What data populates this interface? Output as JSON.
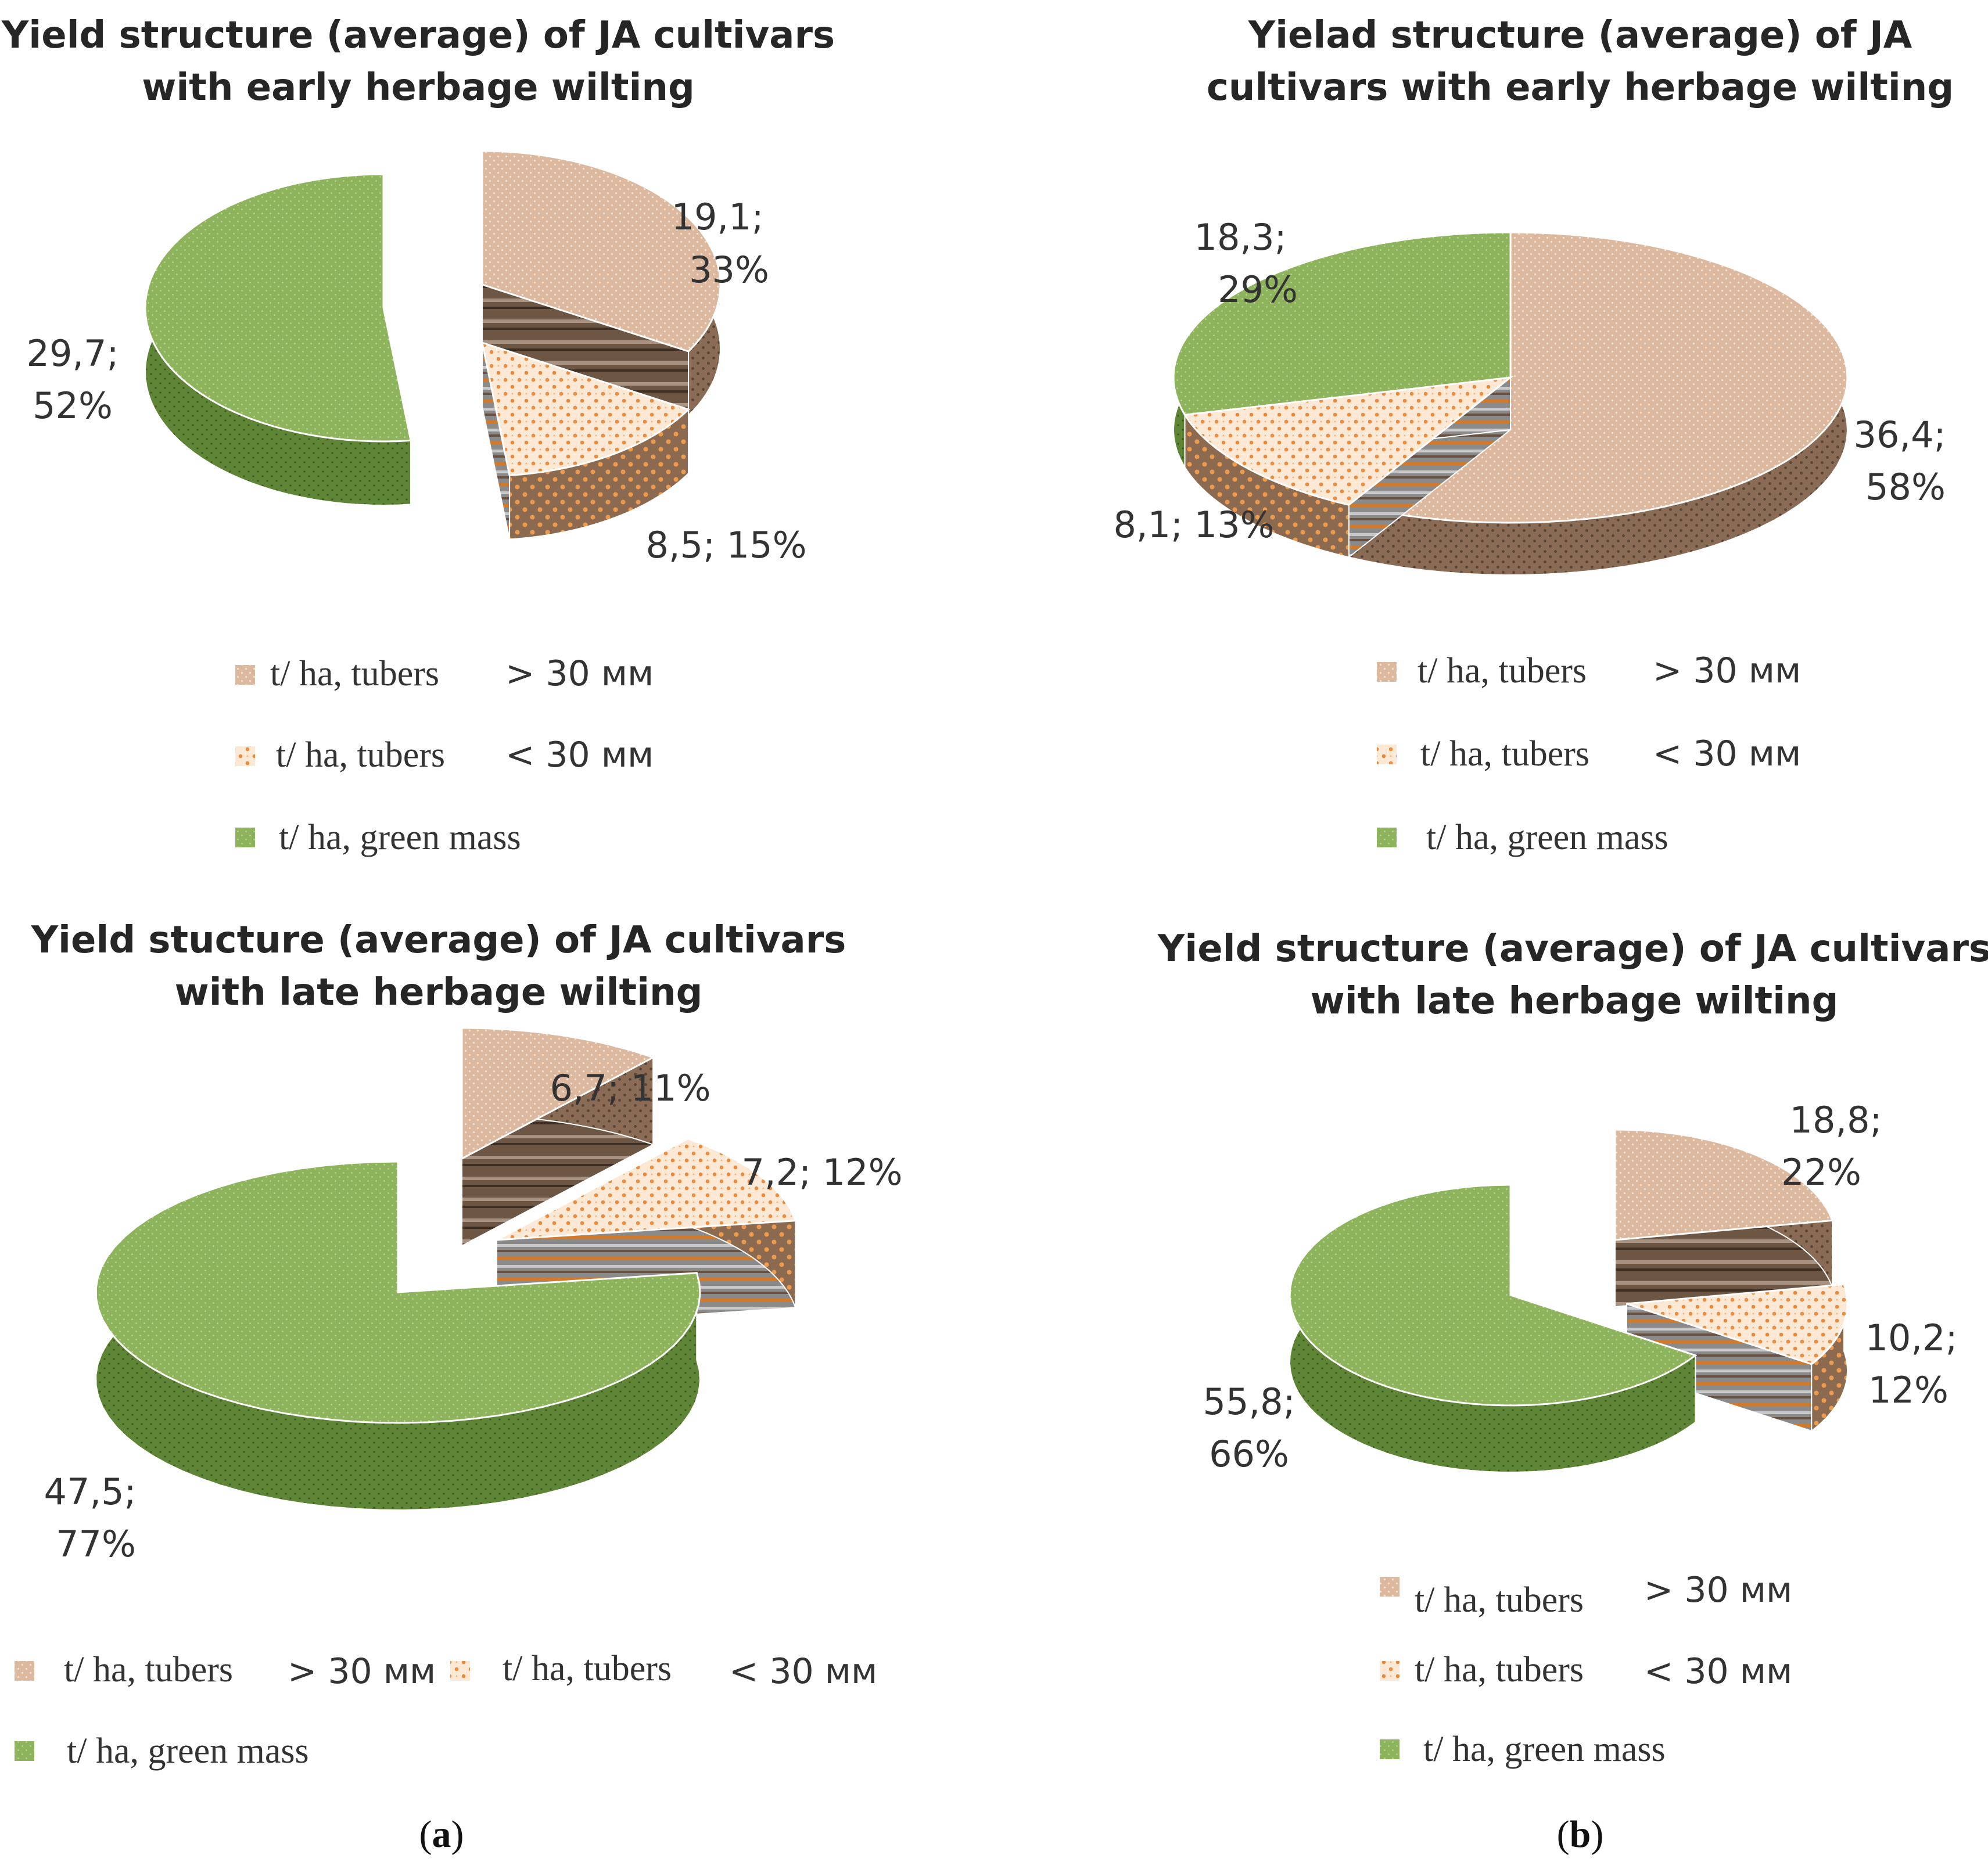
{
  "colors": {
    "tubers_large": "#d9b49a",
    "tubers_large_side": "#6a5442",
    "tubers_small": "#f7dfc4",
    "tubers_small_dots": "#e8873a",
    "green_mass": "#8db35c",
    "green_mass_side": "#567b31"
  },
  "chart_data": [
    {
      "id": "a-top",
      "type": "pie",
      "title_lines": [
        "Yield structure (average) of JA cultivars",
        "with early herbage wilting"
      ],
      "categories": [
        "t/ ha, tubers  > 30 мм",
        "t/ ha, tubers  < 30 мм",
        "t/ ha, green mass"
      ],
      "values": [
        19.1,
        8.5,
        29.7
      ],
      "percents": [
        33,
        15,
        52
      ],
      "labels": [
        [
          "19,1;",
          "33%"
        ],
        [
          "8,5; 15%"
        ],
        [
          "29,7;",
          "52%"
        ]
      ],
      "legend": [
        {
          "text": "t/ ha, tubers",
          "suffix": "> 30 мм"
        },
        {
          "text": "t/ ha, tubers",
          "suffix": "< 30 мм"
        },
        {
          "text": "t/ ha, green mass",
          "suffix": ""
        }
      ]
    },
    {
      "id": "b-top",
      "type": "pie",
      "title_lines": [
        "Yielad structure (average) of JA",
        "cultivars with early herbage wilting"
      ],
      "categories": [
        "t/ ha, tubers  > 30 мм",
        "t/ ha, tubers  < 30 мм",
        "t/ ha, green mass"
      ],
      "values": [
        36.4,
        8.1,
        18.3
      ],
      "percents": [
        58,
        13,
        29
      ],
      "labels": [
        [
          "36,4;",
          "58%"
        ],
        [
          "8,1; 13%"
        ],
        [
          "18,3;",
          "29%"
        ]
      ],
      "legend": [
        {
          "text": "t/ ha, tubers",
          "suffix": "> 30 мм"
        },
        {
          "text": "t/ ha, tubers",
          "suffix": "< 30 мм"
        },
        {
          "text": "t/ ha, green mass",
          "suffix": ""
        }
      ]
    },
    {
      "id": "a-bottom",
      "type": "pie",
      "title_lines": [
        "Yield stucture (average) of JA cultivars",
        "with late herbage wilting"
      ],
      "categories": [
        "t/ ha, tubers  > 30 мм",
        "t/ ha, tubers  < 30 мм",
        "t/ ha, green mass"
      ],
      "values": [
        6.7,
        7.2,
        47.5
      ],
      "percents": [
        11,
        12,
        77
      ],
      "labels": [
        [
          "6,7; 11%"
        ],
        [
          "7,2; 12%"
        ],
        [
          "47,5;",
          "77%"
        ]
      ],
      "legend": [
        {
          "text": "t/ ha, tubers",
          "suffix": "> 30 мм"
        },
        {
          "text": "t/ ha, tubers",
          "suffix": "< 30 мм"
        },
        {
          "text": "t/ ha, green mass",
          "suffix": ""
        }
      ]
    },
    {
      "id": "b-bottom",
      "type": "pie",
      "title_lines": [
        "Yield structure (average) of JA cultivars",
        "with late herbage wilting"
      ],
      "categories": [
        "t/ ha, tubers  > 30 мм",
        "t/ ha, tubers  < 30 мм",
        "t/ ha, green mass"
      ],
      "values": [
        18.8,
        10.2,
        55.8
      ],
      "percents": [
        22,
        12,
        66
      ],
      "labels": [
        [
          "18,8;",
          "22%"
        ],
        [
          "10,2;",
          "12%"
        ],
        [
          "55,8;",
          "66%"
        ]
      ],
      "legend": [
        {
          "text": "t/ ha, tubers",
          "suffix": "> 30 мм"
        },
        {
          "text": "t/ ha, tubers",
          "suffix": "< 30 мм"
        },
        {
          "text": "t/ ha, green mass",
          "suffix": ""
        }
      ]
    }
  ],
  "panel_labels": [
    {
      "open": "(",
      "letter": "a",
      "close": ")"
    },
    {
      "open": "(",
      "letter": "b",
      "close": ")"
    }
  ]
}
